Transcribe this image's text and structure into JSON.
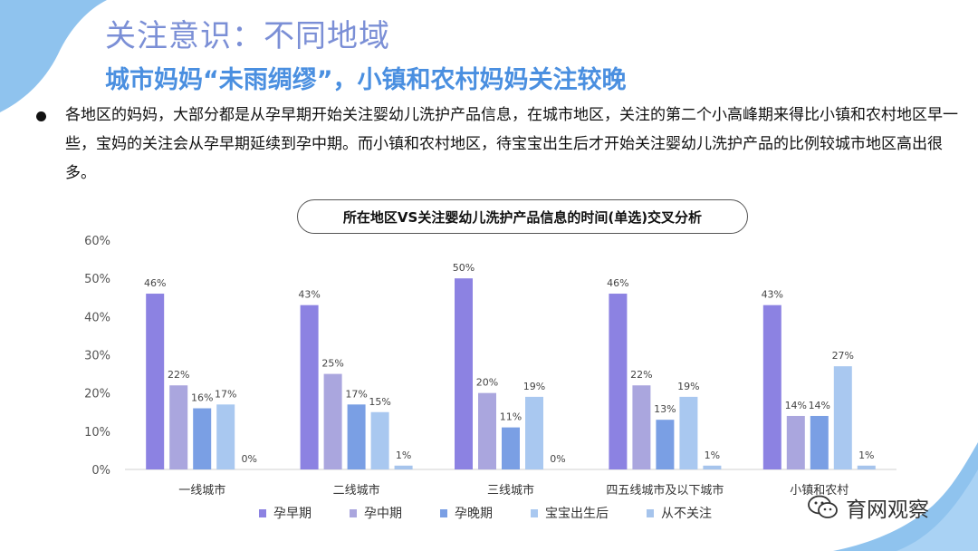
{
  "header": {
    "title": "关注意识：不同地域",
    "subtitle": "城市妈妈“未雨绸缪”，小镇和农村妈妈关注较晚"
  },
  "body": {
    "paragraph": "各地区的妈妈，大部分都是从孕早期开始关注婴幼儿洗护产品信息，在城市地区，关注的第二个小高峰期来得比小镇和农村地区早一些，宝妈的关注会从孕早期延续到孕中期。而小镇和农村地区，待宝宝出生后才开始关注婴幼儿洗护产品的比例较城市地区高出很多。"
  },
  "watermark": {
    "text": "育网观察"
  },
  "colors": {
    "series": [
      "#8c82e2",
      "#aaa6de",
      "#7a9fe4",
      "#a9c8f0",
      "#a6c4ec"
    ],
    "title": "#7b8fd6",
    "subtitle": "#4a8fe0",
    "deco": "#8fc3ee"
  },
  "chart_data": {
    "type": "bar",
    "title": "所在地区VS关注婴幼儿洗护产品信息的时间(单选)交叉分析",
    "categories": [
      "一线城市",
      "二线城市",
      "三线城市",
      "四五线城市及以下城市",
      "小镇和农村"
    ],
    "series": [
      {
        "name": "孕早期",
        "values": [
          46,
          43,
          50,
          46,
          43
        ]
      },
      {
        "name": "孕中期",
        "values": [
          22,
          25,
          20,
          22,
          14
        ]
      },
      {
        "name": "孕晚期",
        "values": [
          16,
          17,
          11,
          13,
          14
        ]
      },
      {
        "name": "宝宝出生后",
        "values": [
          17,
          15,
          19,
          19,
          27
        ]
      },
      {
        "name": "从不关注",
        "values": [
          0,
          1,
          0,
          1,
          1
        ]
      }
    ],
    "ylim": [
      0,
      60
    ],
    "yticks": [
      "0%",
      "10%",
      "20%",
      "30%",
      "40%",
      "50%",
      "60%"
    ],
    "value_suffix": "%",
    "legend_position": "bottom",
    "xlabel": "",
    "ylabel": ""
  }
}
